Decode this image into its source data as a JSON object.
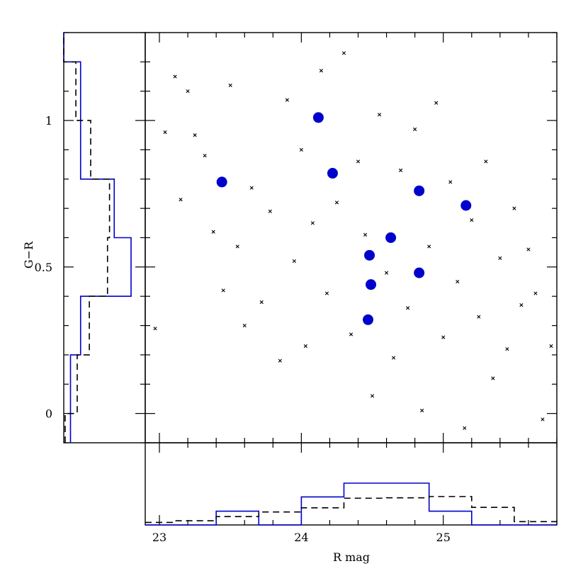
{
  "chart_data": [
    {
      "panel": "main",
      "type": "scatter",
      "xlabel": "R mag",
      "ylabel": "G−R",
      "xlim": [
        22.9,
        25.8
      ],
      "ylim": [
        -0.1,
        1.3
      ],
      "xticks": [
        "23",
        "24",
        "25"
      ],
      "yticks": [
        "0",
        "0.5",
        "1"
      ],
      "series": [
        {
          "marker": "dot",
          "color": "#0000cc",
          "points": [
            [
              23.44,
              0.79
            ],
            [
              24.12,
              1.01
            ],
            [
              24.22,
              0.82
            ],
            [
              24.47,
              0.32
            ],
            [
              24.48,
              0.54
            ],
            [
              24.49,
              0.44
            ],
            [
              24.63,
              0.6
            ],
            [
              24.83,
              0.48
            ],
            [
              24.83,
              0.76
            ],
            [
              25.16,
              0.71
            ]
          ]
        },
        {
          "marker": "cross",
          "color": "#000000",
          "points": [
            [
              22.97,
              0.29
            ],
            [
              23.04,
              0.96
            ],
            [
              23.11,
              1.15
            ],
            [
              23.15,
              0.73
            ],
            [
              23.2,
              1.1
            ],
            [
              23.25,
              0.95
            ],
            [
              23.32,
              0.88
            ],
            [
              23.38,
              0.62
            ],
            [
              23.45,
              0.42
            ],
            [
              23.5,
              1.12
            ],
            [
              23.55,
              0.57
            ],
            [
              23.6,
              0.3
            ],
            [
              23.65,
              0.77
            ],
            [
              23.72,
              0.38
            ],
            [
              23.78,
              0.69
            ],
            [
              23.85,
              0.18
            ],
            [
              23.9,
              1.07
            ],
            [
              23.95,
              0.52
            ],
            [
              24.0,
              0.9
            ],
            [
              24.03,
              0.23
            ],
            [
              24.08,
              0.65
            ],
            [
              24.14,
              1.17
            ],
            [
              24.18,
              0.41
            ],
            [
              24.25,
              0.72
            ],
            [
              24.3,
              1.23
            ],
            [
              24.35,
              0.27
            ],
            [
              24.4,
              0.86
            ],
            [
              24.45,
              0.61
            ],
            [
              24.5,
              0.06
            ],
            [
              24.55,
              1.02
            ],
            [
              24.6,
              0.48
            ],
            [
              24.65,
              0.19
            ],
            [
              24.7,
              0.83
            ],
            [
              24.75,
              0.36
            ],
            [
              24.8,
              0.97
            ],
            [
              24.85,
              0.01
            ],
            [
              24.9,
              0.57
            ],
            [
              24.95,
              1.06
            ],
            [
              25.0,
              0.26
            ],
            [
              25.05,
              0.79
            ],
            [
              25.1,
              0.45
            ],
            [
              25.15,
              -0.05
            ],
            [
              25.2,
              0.66
            ],
            [
              25.25,
              0.33
            ],
            [
              25.3,
              0.86
            ],
            [
              25.35,
              0.12
            ],
            [
              25.4,
              0.53
            ],
            [
              25.45,
              0.22
            ],
            [
              25.5,
              0.7
            ],
            [
              25.55,
              0.37
            ],
            [
              25.6,
              0.56
            ],
            [
              25.65,
              0.41
            ],
            [
              25.7,
              -0.02
            ],
            [
              25.76,
              0.23
            ]
          ]
        }
      ]
    },
    {
      "panel": "left-histogram",
      "type": "step",
      "axis": "G−R",
      "series": [
        {
          "style": "solid",
          "color": "#0000cc",
          "edges": [
            -0.1,
            0.2,
            0.4,
            0.6,
            0.8,
            1.2,
            1.3
          ],
          "counts": [
            0.1,
            0.25,
            1.0,
            0.75,
            0.25,
            0.0
          ]
        },
        {
          "style": "dashed",
          "color": "#000000",
          "edges": [
            -0.1,
            0.0,
            0.2,
            0.4,
            0.6,
            0.8,
            1.0,
            1.2,
            1.3
          ],
          "counts": [
            0.02,
            0.2,
            0.38,
            0.65,
            0.68,
            0.4,
            0.18,
            0.0
          ]
        }
      ]
    },
    {
      "panel": "bottom-histogram",
      "type": "step",
      "axis": "R mag",
      "series": [
        {
          "style": "solid",
          "color": "#0000cc",
          "edges": [
            22.9,
            23.4,
            23.7,
            24.0,
            24.3,
            24.9,
            25.2,
            25.8
          ],
          "counts": [
            0.0,
            0.33,
            0.0,
            0.67,
            1.0,
            0.33,
            0.0
          ]
        },
        {
          "style": "dashed",
          "color": "#000000",
          "edges": [
            22.9,
            23.1,
            23.4,
            23.7,
            24.0,
            24.3,
            24.6,
            24.9,
            25.2,
            25.5,
            25.8
          ],
          "counts": [
            0.06,
            0.1,
            0.2,
            0.31,
            0.41,
            0.64,
            0.65,
            0.68,
            0.42,
            0.08
          ]
        }
      ]
    }
  ]
}
